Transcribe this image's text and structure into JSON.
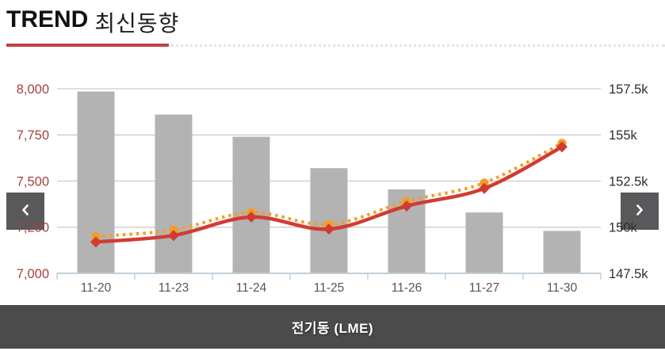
{
  "header": {
    "title_en": "TREND",
    "title_ko": "최신동향"
  },
  "nav": {
    "prev_icon": "chevron-left-icon",
    "next_icon": "chevron-right-icon"
  },
  "footer": {
    "label": "전기동 (LME)"
  },
  "colors": {
    "accent_red": "#c43d41",
    "bar": "#b3b3b3",
    "line_solid": "#d23b33",
    "line_dotted": "#f59d23",
    "left_axis_text": "#a4413d",
    "right_axis_text": "#2e2e2e",
    "x_axis_text": "#55565a",
    "gridline": "#cccccc",
    "baseline": "#c2cfda",
    "nav_button_bg": "#59595b",
    "footer_bg": "#4b4b4b"
  },
  "chart_data": {
    "type": "bar+line",
    "title": "전기동 (LME)",
    "categories": [
      "11-20",
      "11-23",
      "11-24",
      "11-25",
      "11-26",
      "11-27",
      "11-30"
    ],
    "series": [
      {
        "name": "price-bars",
        "type": "bar",
        "axis": "left",
        "values": [
          7985,
          7860,
          7740,
          7570,
          7455,
          7330,
          7230
        ]
      },
      {
        "name": "inventory-dotted",
        "type": "line",
        "style": "dotted",
        "marker": "circle",
        "axis": "right",
        "values": [
          149500,
          149850,
          150800,
          150150,
          151400,
          152400,
          154550
        ]
      },
      {
        "name": "inventory-solid",
        "type": "line",
        "style": "solid",
        "marker": "diamond",
        "axis": "right",
        "values": [
          149200,
          149550,
          150550,
          149900,
          151150,
          152100,
          154350
        ]
      }
    ],
    "left_axis": {
      "min": 7000,
      "max": 8000,
      "ticks": [
        {
          "label": "8,000",
          "value": 8000
        },
        {
          "label": "7,750",
          "value": 7750
        },
        {
          "label": "7,500",
          "value": 7500
        },
        {
          "label": "7,250",
          "value": 7250
        },
        {
          "label": "7,000",
          "value": 7000
        }
      ]
    },
    "right_axis": {
      "min": 147500,
      "max": 157500,
      "ticks": [
        {
          "label": "157.5k",
          "value": 157500
        },
        {
          "label": "155k",
          "value": 155000
        },
        {
          "label": "152.5k",
          "value": 152500
        },
        {
          "label": "150k",
          "value": 150000
        },
        {
          "label": "147.5k",
          "value": 147500
        }
      ]
    },
    "grid": true,
    "legend": "none"
  }
}
